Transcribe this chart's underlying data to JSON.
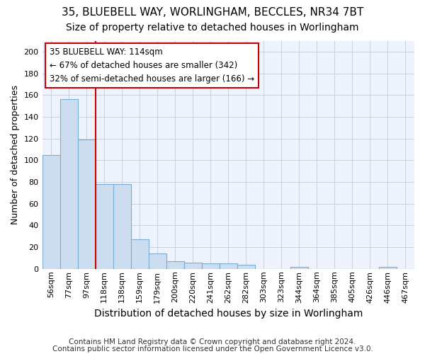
{
  "title1": "35, BLUEBELL WAY, WORLINGHAM, BECCLES, NR34 7BT",
  "title2": "Size of property relative to detached houses in Worlingham",
  "xlabel": "Distribution of detached houses by size in Worlingham",
  "ylabel": "Number of detached properties",
  "categories": [
    "56sqm",
    "77sqm",
    "97sqm",
    "118sqm",
    "138sqm",
    "159sqm",
    "179sqm",
    "200sqm",
    "220sqm",
    "241sqm",
    "262sqm",
    "282sqm",
    "303sqm",
    "323sqm",
    "344sqm",
    "364sqm",
    "385sqm",
    "405sqm",
    "426sqm",
    "446sqm",
    "467sqm"
  ],
  "values": [
    105,
    156,
    119,
    78,
    78,
    27,
    14,
    7,
    6,
    5,
    5,
    4,
    0,
    0,
    2,
    0,
    0,
    0,
    0,
    2,
    0
  ],
  "bar_color": "#ccddf0",
  "bar_edge_color": "#7aadd4",
  "bar_width": 1.0,
  "red_line_color": "#cc0000",
  "annotation_line1": "35 BLUEBELL WAY: 114sqm",
  "annotation_line2": "← 67% of detached houses are smaller (342)",
  "annotation_line3": "32% of semi-detached houses are larger (166) →",
  "annotation_box_color": "#ffffff",
  "annotation_box_edge": "#cc0000",
  "ylim": [
    0,
    210
  ],
  "yticks": [
    0,
    20,
    40,
    60,
    80,
    100,
    120,
    140,
    160,
    180,
    200
  ],
  "footnote1": "Contains HM Land Registry data © Crown copyright and database right 2024.",
  "footnote2": "Contains public sector information licensed under the Open Government Licence v3.0.",
  "bg_color": "#ffffff",
  "plot_bg_color": "#edf2fb",
  "grid_color": "#c8d0e0",
  "title1_fontsize": 11,
  "title2_fontsize": 10,
  "xlabel_fontsize": 10,
  "ylabel_fontsize": 9,
  "annotation_fontsize": 8.5,
  "footnote_fontsize": 7.5,
  "tick_fontsize": 8
}
